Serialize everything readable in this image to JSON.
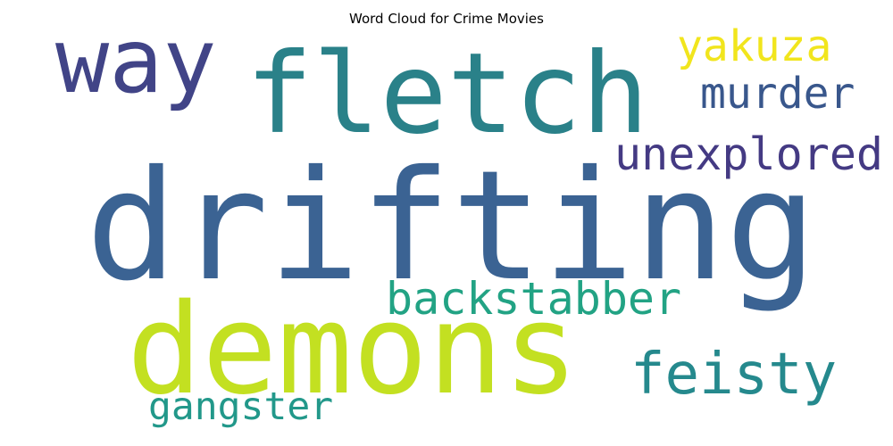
{
  "chart_data": {
    "type": "wordcloud",
    "title": "Word Cloud for Crime Movies",
    "words": [
      {
        "text": "drifting",
        "weight": 1.0,
        "color": "#3b6393"
      },
      {
        "text": "demons",
        "weight": 0.82,
        "color": "#c3e021"
      },
      {
        "text": "fletch",
        "weight": 0.74,
        "color": "#2a8189"
      },
      {
        "text": "way",
        "weight": 0.6,
        "color": "#414487"
      },
      {
        "text": "feisty",
        "weight": 0.38,
        "color": "#25898d"
      },
      {
        "text": "unexplored",
        "weight": 0.3,
        "color": "#443a83"
      },
      {
        "text": "backstabber",
        "weight": 0.3,
        "color": "#22a384"
      },
      {
        "text": "murder",
        "weight": 0.28,
        "color": "#39578c"
      },
      {
        "text": "yakuza",
        "weight": 0.28,
        "color": "#f1e51d"
      },
      {
        "text": "gangster",
        "weight": 0.26,
        "color": "#22988a"
      }
    ]
  }
}
